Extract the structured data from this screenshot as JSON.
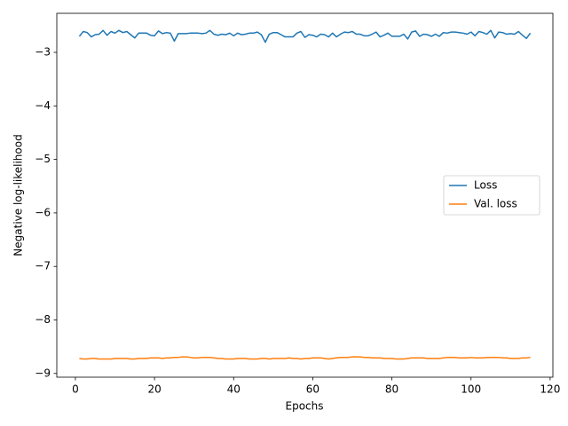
{
  "chart_data": {
    "type": "line",
    "xlabel": "Epochs",
    "ylabel": "Negative log-likelihood",
    "x": [
      1,
      2,
      3,
      4,
      5,
      6,
      7,
      8,
      9,
      10,
      11,
      12,
      13,
      14,
      15,
      16,
      17,
      18,
      19,
      20,
      21,
      22,
      23,
      24,
      25,
      26,
      27,
      28,
      29,
      30,
      31,
      32,
      33,
      34,
      35,
      36,
      37,
      38,
      39,
      40,
      41,
      42,
      43,
      44,
      45,
      46,
      47,
      48,
      49,
      50,
      51,
      52,
      53,
      54,
      55,
      56,
      57,
      58,
      59,
      60,
      61,
      62,
      63,
      64,
      65,
      66,
      67,
      68,
      69,
      70,
      71,
      72,
      73,
      74,
      75,
      76,
      77,
      78,
      79,
      80,
      81,
      82,
      83,
      84,
      85,
      86,
      87,
      88,
      89,
      90,
      91,
      92,
      93,
      94,
      95,
      96,
      97,
      98,
      99,
      100,
      101,
      102,
      103,
      104,
      105,
      106,
      107,
      108,
      109,
      110,
      111,
      112,
      113,
      114,
      115
    ],
    "series": [
      {
        "name": "Loss",
        "color": "#1f77b4",
        "values": [
          -2.7,
          -2.61,
          -2.63,
          -2.71,
          -2.67,
          -2.66,
          -2.59,
          -2.68,
          -2.61,
          -2.64,
          -2.59,
          -2.63,
          -2.61,
          -2.67,
          -2.73,
          -2.64,
          -2.64,
          -2.64,
          -2.68,
          -2.69,
          -2.6,
          -2.65,
          -2.63,
          -2.64,
          -2.79,
          -2.65,
          -2.65,
          -2.65,
          -2.64,
          -2.64,
          -2.64,
          -2.65,
          -2.64,
          -2.59,
          -2.66,
          -2.68,
          -2.66,
          -2.67,
          -2.64,
          -2.69,
          -2.64,
          -2.67,
          -2.66,
          -2.64,
          -2.64,
          -2.62,
          -2.67,
          -2.81,
          -2.66,
          -2.63,
          -2.63,
          -2.67,
          -2.71,
          -2.71,
          -2.71,
          -2.64,
          -2.61,
          -2.72,
          -2.67,
          -2.68,
          -2.71,
          -2.66,
          -2.67,
          -2.71,
          -2.64,
          -2.71,
          -2.66,
          -2.62,
          -2.63,
          -2.61,
          -2.66,
          -2.66,
          -2.69,
          -2.69,
          -2.66,
          -2.62,
          -2.71,
          -2.68,
          -2.64,
          -2.7,
          -2.7,
          -2.7,
          -2.66,
          -2.75,
          -2.62,
          -2.6,
          -2.7,
          -2.66,
          -2.67,
          -2.7,
          -2.66,
          -2.7,
          -2.63,
          -2.64,
          -2.62,
          -2.62,
          -2.63,
          -2.64,
          -2.66,
          -2.62,
          -2.69,
          -2.61,
          -2.63,
          -2.66,
          -2.59,
          -2.73,
          -2.62,
          -2.63,
          -2.66,
          -2.65,
          -2.66,
          -2.61,
          -2.68,
          -2.74,
          -2.64
        ]
      },
      {
        "name": "Val. loss",
        "color": "#ff7f0e",
        "values": [
          -8.72,
          -8.73,
          -8.73,
          -8.72,
          -8.72,
          -8.73,
          -8.73,
          -8.73,
          -8.73,
          -8.72,
          -8.72,
          -8.72,
          -8.72,
          -8.73,
          -8.73,
          -8.72,
          -8.72,
          -8.72,
          -8.71,
          -8.71,
          -8.71,
          -8.72,
          -8.71,
          -8.71,
          -8.7,
          -8.7,
          -8.69,
          -8.69,
          -8.7,
          -8.71,
          -8.71,
          -8.7,
          -8.7,
          -8.7,
          -8.71,
          -8.72,
          -8.72,
          -8.73,
          -8.73,
          -8.73,
          -8.72,
          -8.72,
          -8.72,
          -8.73,
          -8.73,
          -8.73,
          -8.72,
          -8.72,
          -8.73,
          -8.72,
          -8.72,
          -8.72,
          -8.72,
          -8.71,
          -8.72,
          -8.72,
          -8.73,
          -8.72,
          -8.72,
          -8.71,
          -8.71,
          -8.71,
          -8.72,
          -8.73,
          -8.72,
          -8.71,
          -8.7,
          -8.7,
          -8.7,
          -8.69,
          -8.69,
          -8.69,
          -8.7,
          -8.7,
          -8.71,
          -8.71,
          -8.71,
          -8.72,
          -8.72,
          -8.72,
          -8.73,
          -8.73,
          -8.73,
          -8.72,
          -8.71,
          -8.71,
          -8.71,
          -8.71,
          -8.72,
          -8.72,
          -8.72,
          -8.72,
          -8.71,
          -8.7,
          -8.7,
          -8.7,
          -8.71,
          -8.71,
          -8.71,
          -8.7,
          -8.71,
          -8.71,
          -8.71,
          -8.7,
          -8.7,
          -8.7,
          -8.7,
          -8.71,
          -8.71,
          -8.72,
          -8.72,
          -8.72,
          -8.71,
          -8.71,
          -8.7
        ]
      }
    ],
    "xlim": [
      -4.7,
      120.7
    ],
    "xticks": [
      0,
      20,
      40,
      60,
      80,
      100,
      120
    ],
    "ylim": [
      -9.07,
      -2.27
    ],
    "yticks": [
      {
        "value": -9,
        "label": "−9"
      },
      {
        "value": -8,
        "label": "−8"
      },
      {
        "value": -7,
        "label": "−7"
      },
      {
        "value": -6,
        "label": "−6"
      },
      {
        "value": -5,
        "label": "−5"
      },
      {
        "value": -4,
        "label": "−4"
      },
      {
        "value": -3,
        "label": "−3"
      }
    ],
    "legend": "center right"
  }
}
